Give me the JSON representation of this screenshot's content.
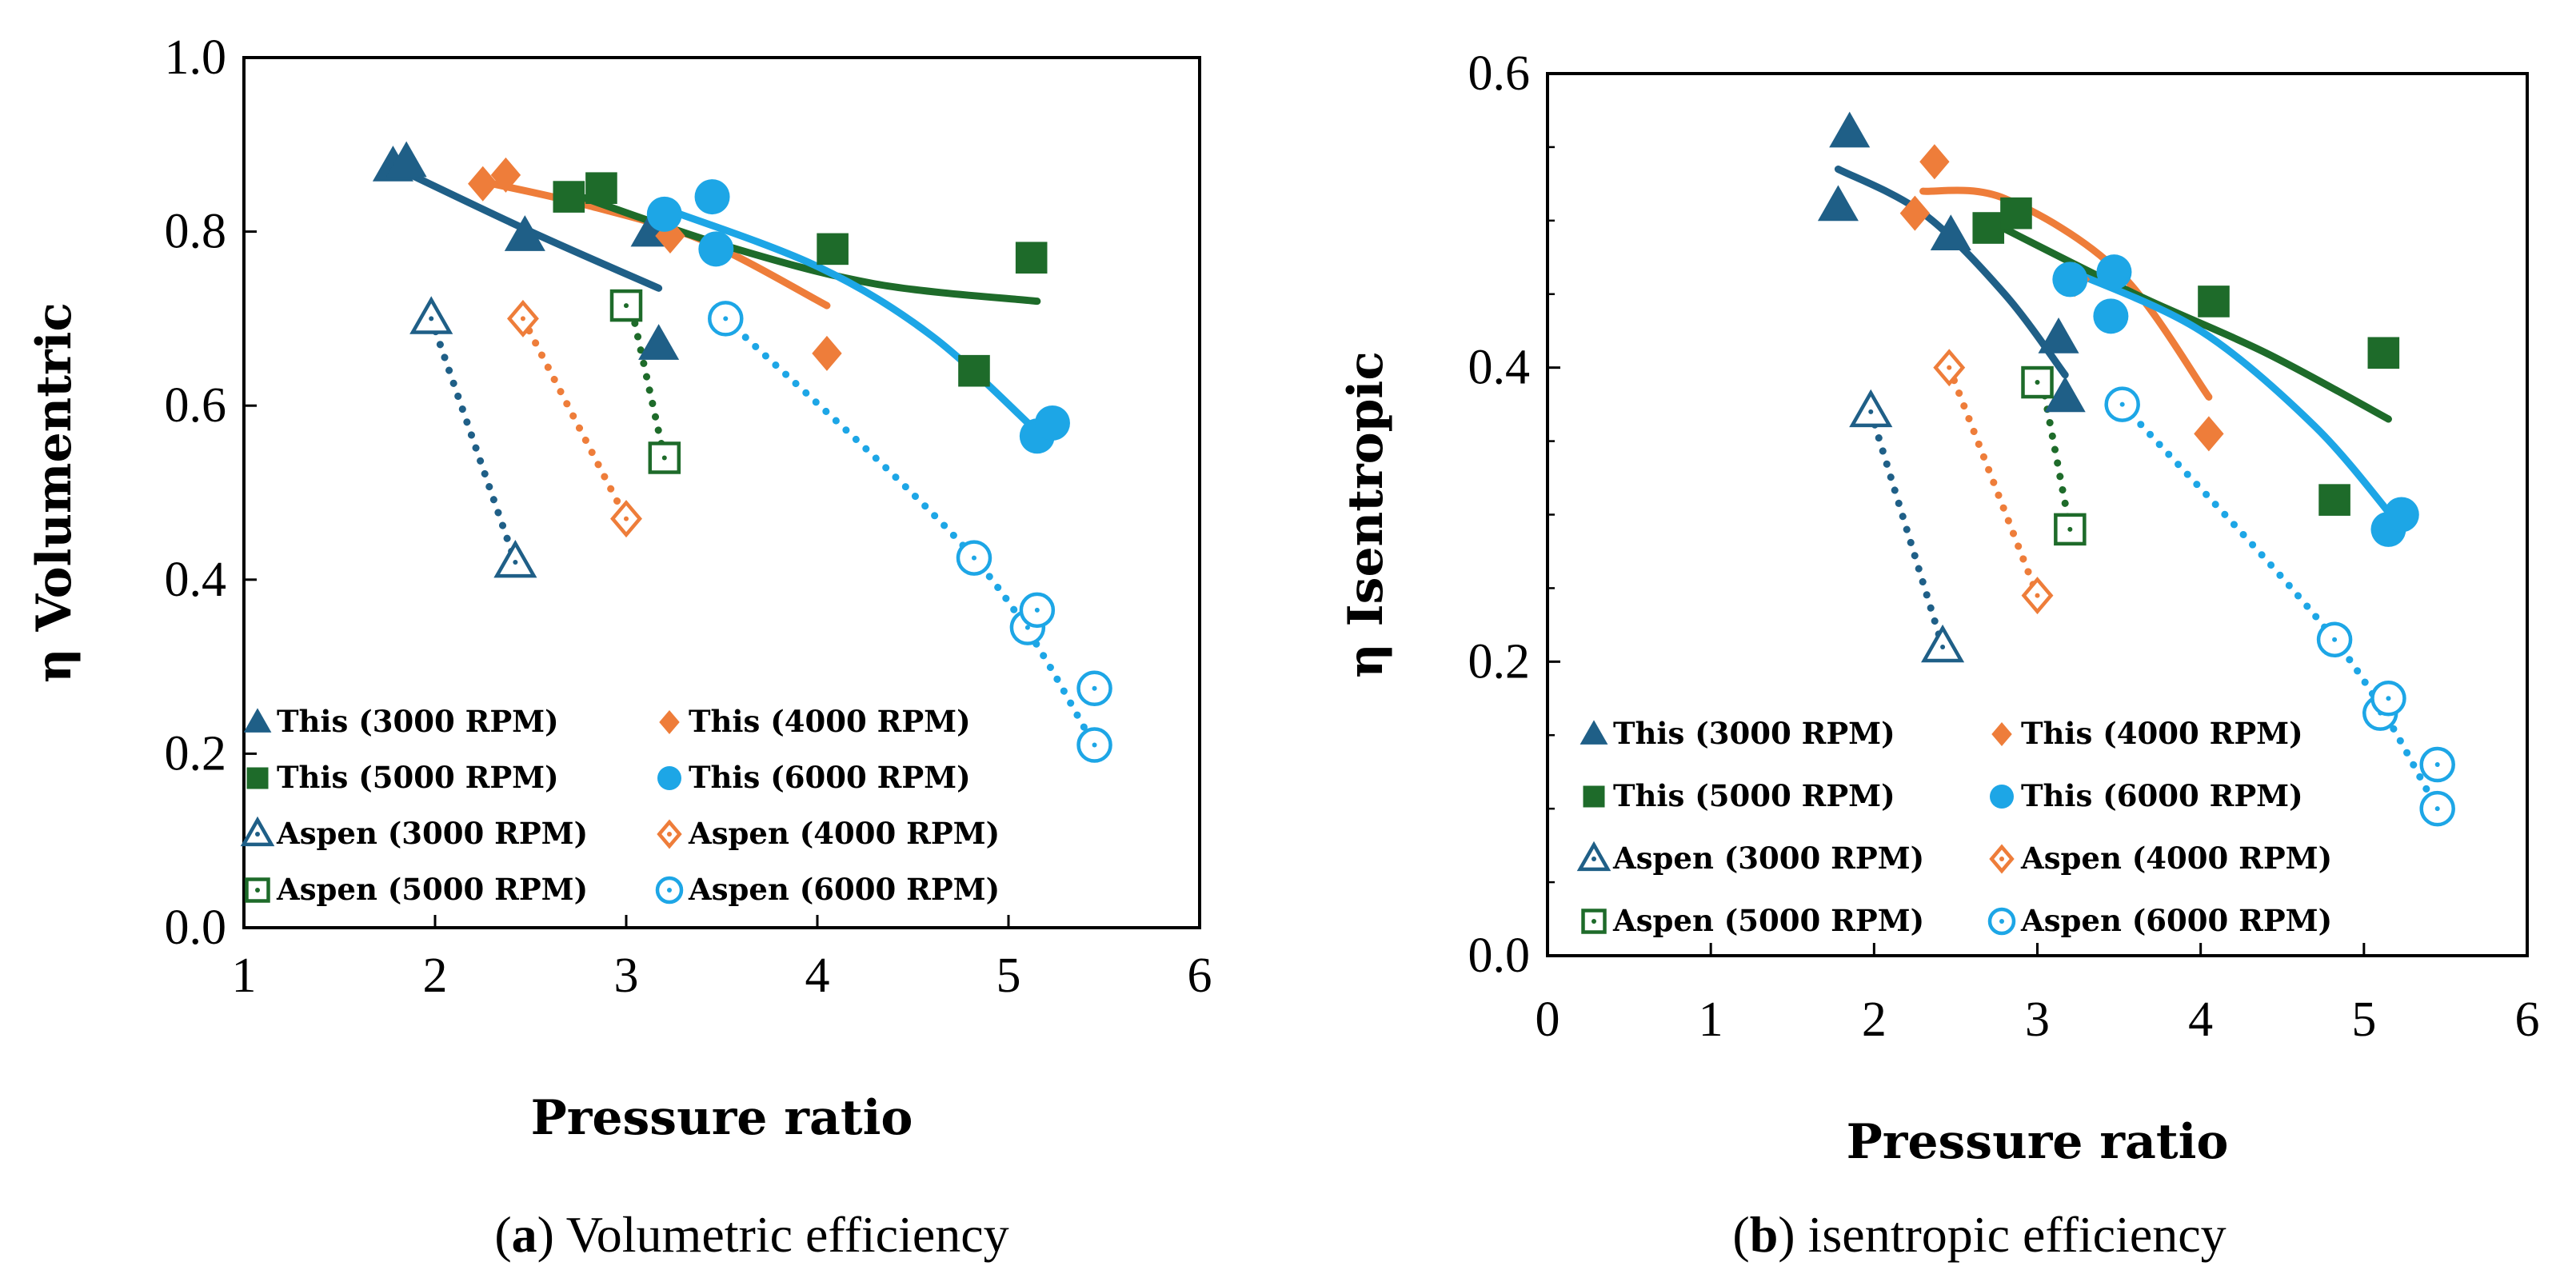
{
  "colors": {
    "c3000": "#1f5f87",
    "c4000": "#ee7d3a",
    "c5000": "#1e6b2a",
    "c6000": "#1da6e6"
  },
  "chart_data": [
    {
      "type": "scatter",
      "panel": "a",
      "caption_label": "a",
      "caption_text": "Volumetric efficiency",
      "xlabel": "Pressure ratio",
      "ylabel": "η Volumentric",
      "xlim": [
        1,
        6
      ],
      "ylim": [
        0,
        1
      ],
      "xticks": [
        1,
        2,
        3,
        4,
        5,
        6
      ],
      "xtick_labels": [
        "1",
        "2",
        "3",
        "4",
        "5",
        "6"
      ],
      "yticks": [
        0,
        0.2,
        0.4,
        0.6,
        0.8,
        1.0
      ],
      "ytick_labels": [
        "0.0",
        "0.2",
        "0.4",
        "0.6",
        "0.8",
        "1.0"
      ],
      "legend_columns": 2,
      "legend_position": "bottom-left",
      "series": [
        {
          "name": "This (3000 RPM)",
          "color_key": "c3000",
          "marker": "triangle",
          "filled": true,
          "x": [
            1.78,
            1.85,
            2.47,
            3.13,
            3.17
          ],
          "y": [
            0.875,
            0.88,
            0.795,
            0.8,
            0.67
          ]
        },
        {
          "name": "This (4000 RPM)",
          "color_key": "c4000",
          "marker": "diamond",
          "filled": true,
          "x": [
            2.25,
            2.37,
            3.23,
            4.05
          ],
          "y": [
            0.855,
            0.865,
            0.795,
            0.66
          ]
        },
        {
          "name": "This (5000 RPM)",
          "color_key": "c5000",
          "marker": "square",
          "filled": true,
          "x": [
            2.7,
            2.87,
            4.08,
            4.82,
            5.12
          ],
          "y": [
            0.84,
            0.85,
            0.78,
            0.64,
            0.77
          ]
        },
        {
          "name": "This (6000 RPM)",
          "color_key": "c6000",
          "marker": "circle",
          "filled": true,
          "x": [
            3.2,
            3.45,
            3.47,
            5.15,
            5.23
          ],
          "y": [
            0.82,
            0.84,
            0.78,
            0.565,
            0.58
          ]
        },
        {
          "name": "Aspen (3000 RPM)",
          "color_key": "c3000",
          "marker": "triangle",
          "filled": false,
          "x": [
            1.98,
            2.42
          ],
          "y": [
            0.7,
            0.42
          ]
        },
        {
          "name": "Aspen (4000 RPM)",
          "color_key": "c4000",
          "marker": "diamond",
          "filled": false,
          "x": [
            2.46,
            3.0
          ],
          "y": [
            0.7,
            0.47
          ]
        },
        {
          "name": "Aspen (5000 RPM)",
          "color_key": "c5000",
          "marker": "square",
          "filled": false,
          "x": [
            3.0,
            3.2
          ],
          "y": [
            0.715,
            0.54
          ]
        },
        {
          "name": "Aspen (6000 RPM)",
          "color_key": "c6000",
          "marker": "circle",
          "filled": false,
          "x": [
            3.52,
            4.82,
            5.1,
            5.15,
            5.45,
            5.45
          ],
          "y": [
            0.7,
            0.425,
            0.345,
            0.365,
            0.275,
            0.21
          ]
        }
      ],
      "trendlines": [
        {
          "color_key": "c3000",
          "style": "solid",
          "x": [
            1.78,
            2.5,
            3.17
          ],
          "y": [
            0.875,
            0.8,
            0.735
          ]
        },
        {
          "color_key": "c4000",
          "style": "solid",
          "x": [
            2.3,
            2.8,
            3.4,
            4.05
          ],
          "y": [
            0.855,
            0.83,
            0.79,
            0.715
          ]
        },
        {
          "color_key": "c5000",
          "style": "solid",
          "x": [
            2.7,
            3.5,
            4.3,
            5.15
          ],
          "y": [
            0.845,
            0.785,
            0.74,
            0.72
          ]
        },
        {
          "color_key": "c6000",
          "style": "solid",
          "x": [
            3.22,
            4.0,
            4.6,
            5.15
          ],
          "y": [
            0.825,
            0.76,
            0.68,
            0.57
          ]
        },
        {
          "color_key": "c3000",
          "style": "dotted",
          "x": [
            1.98,
            2.42
          ],
          "y": [
            0.7,
            0.42
          ]
        },
        {
          "color_key": "c4000",
          "style": "dotted",
          "x": [
            2.46,
            3.0
          ],
          "y": [
            0.7,
            0.47
          ]
        },
        {
          "color_key": "c5000",
          "style": "dotted",
          "x": [
            3.03,
            3.2
          ],
          "y": [
            0.71,
            0.54
          ]
        },
        {
          "color_key": "c6000",
          "style": "dotted",
          "x": [
            3.52,
            4.82,
            5.45
          ],
          "y": [
            0.7,
            0.425,
            0.21
          ]
        }
      ]
    },
    {
      "type": "scatter",
      "panel": "b",
      "caption_label": "b",
      "caption_text": "isentropic efficiency",
      "xlabel": "Pressure ratio",
      "ylabel": "η Isentropic",
      "xlim": [
        0,
        6
      ],
      "ylim": [
        0,
        0.6
      ],
      "xticks": [
        0,
        1,
        2,
        3,
        4,
        5,
        6
      ],
      "xtick_labels": [
        "0",
        "1",
        "2",
        "3",
        "4",
        "5",
        "6"
      ],
      "yticks": [
        0,
        0.2,
        0.4,
        0.6
      ],
      "ytick_labels": [
        "0.0",
        "0.2",
        "0.4",
        "0.6"
      ],
      "legend_columns": 2,
      "legend_position": "bottom-left",
      "series": [
        {
          "name": "This (3000 RPM)",
          "color_key": "c3000",
          "marker": "triangle",
          "filled": true,
          "x": [
            1.78,
            1.85,
            2.47,
            3.13,
            3.17
          ],
          "y": [
            0.51,
            0.56,
            0.49,
            0.42,
            0.38
          ]
        },
        {
          "name": "This (4000 RPM)",
          "color_key": "c4000",
          "marker": "diamond",
          "filled": true,
          "x": [
            2.25,
            2.37,
            3.23,
            4.05
          ],
          "y": [
            0.505,
            0.54,
            0.46,
            0.355
          ]
        },
        {
          "name": "This (5000 RPM)",
          "color_key": "c5000",
          "marker": "square",
          "filled": true,
          "x": [
            2.7,
            2.87,
            4.08,
            4.82,
            5.12
          ],
          "y": [
            0.495,
            0.505,
            0.445,
            0.31,
            0.41
          ]
        },
        {
          "name": "This (6000 RPM)",
          "color_key": "c6000",
          "marker": "circle",
          "filled": true,
          "x": [
            3.2,
            3.45,
            3.47,
            5.15,
            5.23
          ],
          "y": [
            0.46,
            0.435,
            0.465,
            0.29,
            0.3
          ]
        },
        {
          "name": "Aspen (3000 RPM)",
          "color_key": "c3000",
          "marker": "triangle",
          "filled": false,
          "x": [
            1.98,
            2.42
          ],
          "y": [
            0.37,
            0.21
          ]
        },
        {
          "name": "Aspen (4000 RPM)",
          "color_key": "c4000",
          "marker": "diamond",
          "filled": false,
          "x": [
            2.46,
            3.0
          ],
          "y": [
            0.4,
            0.245
          ]
        },
        {
          "name": "Aspen (5000 RPM)",
          "color_key": "c5000",
          "marker": "square",
          "filled": false,
          "x": [
            3.0,
            3.2
          ],
          "y": [
            0.39,
            0.29
          ]
        },
        {
          "name": "Aspen (6000 RPM)",
          "color_key": "c6000",
          "marker": "circle",
          "filled": false,
          "x": [
            3.52,
            4.82,
            5.1,
            5.15,
            5.45,
            5.45
          ],
          "y": [
            0.375,
            0.215,
            0.165,
            0.175,
            0.13,
            0.1
          ]
        }
      ],
      "trendlines": [
        {
          "color_key": "c3000",
          "style": "solid",
          "x": [
            1.78,
            2.3,
            2.8,
            3.17
          ],
          "y": [
            0.535,
            0.505,
            0.45,
            0.395
          ]
        },
        {
          "color_key": "c4000",
          "style": "solid",
          "x": [
            2.3,
            2.8,
            3.5,
            4.05
          ],
          "y": [
            0.52,
            0.515,
            0.465,
            0.38
          ]
        },
        {
          "color_key": "c5000",
          "style": "solid",
          "x": [
            2.7,
            3.6,
            4.4,
            5.15
          ],
          "y": [
            0.5,
            0.45,
            0.41,
            0.365
          ]
        },
        {
          "color_key": "c6000",
          "style": "solid",
          "x": [
            3.22,
            4.0,
            4.7,
            5.2
          ],
          "y": [
            0.465,
            0.425,
            0.36,
            0.295
          ]
        },
        {
          "color_key": "c3000",
          "style": "dotted",
          "x": [
            1.98,
            2.42
          ],
          "y": [
            0.37,
            0.21
          ]
        },
        {
          "color_key": "c4000",
          "style": "dotted",
          "x": [
            2.46,
            3.0
          ],
          "y": [
            0.4,
            0.245
          ]
        },
        {
          "color_key": "c5000",
          "style": "dotted",
          "x": [
            3.03,
            3.2
          ],
          "y": [
            0.39,
            0.29
          ]
        },
        {
          "color_key": "c6000",
          "style": "dotted",
          "x": [
            3.52,
            4.82,
            5.45
          ],
          "y": [
            0.375,
            0.215,
            0.1
          ]
        }
      ]
    }
  ]
}
